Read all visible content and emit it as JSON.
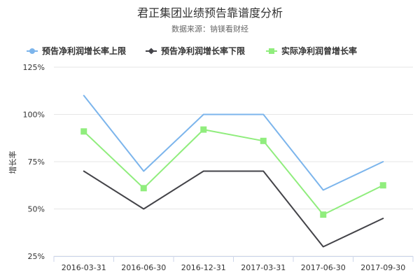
{
  "chart_data": {
    "type": "line",
    "title": "君正集团业绩预告靠谱度分析",
    "subtitle": "数据来源：钠镁看财经",
    "ylabel": "增长率",
    "xlabel": "",
    "categories": [
      "2016-03-31",
      "2016-06-30",
      "2016-12-31",
      "2017-03-31",
      "2017-06-30",
      "2017-09-30"
    ],
    "ylim": [
      25,
      125
    ],
    "yticks": [
      25,
      50,
      75,
      100,
      125
    ],
    "ytick_labels": [
      "25%",
      "50%",
      "75%",
      "100%",
      "125%"
    ],
    "grid": true,
    "legend_position": "top",
    "series": [
      {
        "name": "预告净利润增长率上限",
        "color": "#7cb5ec",
        "marker": "circle",
        "show_markers": false,
        "values": [
          110,
          70,
          100,
          100,
          60,
          75
        ]
      },
      {
        "name": "预告净利润增长率下限",
        "color": "#434348",
        "marker": "diamond",
        "show_markers": false,
        "values": [
          70,
          50,
          70,
          70,
          30,
          45
        ]
      },
      {
        "name": "实际净利润曾增长率",
        "color": "#90ed7d",
        "marker": "square",
        "show_markers": true,
        "values": [
          91,
          61,
          92,
          86,
          47,
          62.5
        ]
      }
    ]
  }
}
